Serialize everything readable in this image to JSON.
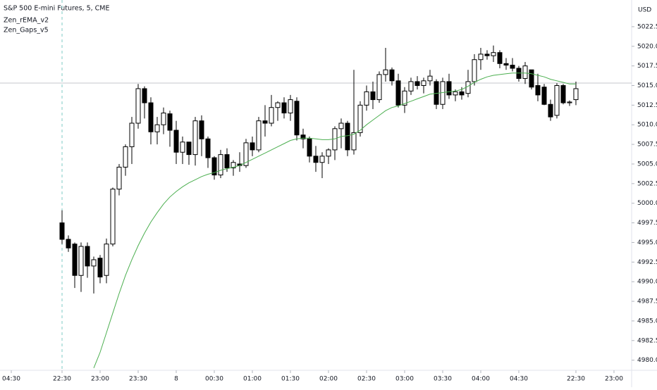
{
  "chart_data": {
    "type": "candlestick",
    "title": "S&P 500 E-mini Futures, 5, CME",
    "indicators": [
      "Zen_rEMA_v2",
      "Zen_Gaps_v5"
    ],
    "currency": "USD",
    "x": [
      0,
      1,
      2,
      3,
      4,
      5,
      6,
      7,
      8,
      9,
      10,
      11,
      12,
      13,
      14,
      15,
      16,
      17,
      18,
      19,
      20,
      21,
      22,
      23,
      24,
      25,
      26,
      27,
      28,
      29,
      30,
      31,
      32,
      33,
      34,
      35,
      36,
      37,
      38,
      39,
      40,
      41,
      42,
      43,
      44,
      45,
      46,
      47,
      48,
      49,
      50,
      51,
      52,
      53,
      54,
      55,
      56,
      57,
      58,
      59,
      60,
      61,
      62,
      63,
      64,
      65,
      66,
      67,
      68,
      69,
      70,
      71,
      72,
      73,
      74,
      75,
      76,
      77,
      78,
      79,
      80,
      81
    ],
    "open": [
      4997.5,
      4995.4,
      4994.8,
      4990.8,
      4994.5,
      4992.0,
      4993.0,
      4990.8,
      4994.8,
      5001.8,
      5004.6,
      5007.2,
      5010.2,
      5014.6,
      5012.8,
      5009.1,
      5010.0,
      5011.4,
      5009.3,
      5006.5,
      5007.8,
      5006.2,
      5010.5,
      5008.2,
      5005.8,
      5003.6,
      5006.2,
      5004.5,
      5005.0,
      5004.8,
      5007.7,
      5006.8,
      5010.5,
      5010.2,
      5012.2,
      5012.8,
      5011.5,
      5013.0,
      5008.7,
      5008.2,
      5006.0,
      5005.2,
      5006.0,
      5006.8,
      5009.5,
      5010.2,
      5006.8,
      5009.0,
      5012.5,
      5014.2,
      5013.2,
      5016.4,
      5017.0,
      5015.6,
      5012.5,
      5014.3,
      5015.5,
      5015.0,
      5015.6,
      5015.5,
      5012.6,
      5015.5,
      5013.8,
      5014.2,
      5014.0,
      5015.5,
      5018.3,
      5019.0,
      5018.8,
      5019.2,
      5017.8,
      5017.6,
      5017.2,
      5015.9,
      5017.0,
      5015.0,
      5014.8,
      5012.6,
      5011.2,
      5015.0,
      5012.8,
      5013.2
    ],
    "high": [
      4999.1,
      4995.9,
      4995.0,
      4995.0,
      4995.0,
      4993.2,
      4993.4,
      4995.5,
      5002.0,
      5005.0,
      5007.5,
      5011.0,
      5015.2,
      5014.9,
      5013.5,
      5011.0,
      5012.2,
      5011.8,
      5010.5,
      5008.5,
      5007.8,
      5011.0,
      5011.2,
      5008.5,
      5006.0,
      5006.8,
      5007.0,
      5005.5,
      5006.5,
      5008.2,
      5008.5,
      5011.0,
      5012.5,
      5013.8,
      5013.0,
      5013.5,
      5013.8,
      5013.5,
      5009.5,
      5008.5,
      5007.3,
      5006.5,
      5007.0,
      5009.8,
      5010.8,
      5010.5,
      5017.0,
      5013.0,
      5015.0,
      5015.5,
      5016.8,
      5019.8,
      5017.3,
      5016.5,
      5014.8,
      5016.0,
      5016.2,
      5016.0,
      5017.0,
      5015.8,
      5016.0,
      5016.5,
      5014.5,
      5014.8,
      5017.0,
      5019.0,
      5019.8,
      5019.5,
      5020.1,
      5019.5,
      5018.5,
      5018.5,
      5017.5,
      5018.0,
      5017.0,
      5016.5,
      5015.2,
      5013.2,
      5015.3,
      5015.2,
      5013.1,
      5015.5
    ],
    "low": [
      4994.8,
      4993.8,
      4989.2,
      4988.7,
      4990.5,
      4988.5,
      4989.8,
      4989.8,
      4994.5,
      5001.0,
      5003.5,
      5005.0,
      5009.5,
      5010.8,
      5007.5,
      5007.5,
      5008.8,
      5007.2,
      5005.0,
      5005.0,
      5004.9,
      5004.8,
      5006.0,
      5004.5,
      5003.0,
      5003.2,
      5004.0,
      5003.5,
      5004.0,
      5004.5,
      5006.0,
      5006.5,
      5008.5,
      5009.8,
      5010.5,
      5010.8,
      5010.5,
      5008.0,
      5007.0,
      5005.2,
      5004.0,
      5003.2,
      5005.0,
      5005.5,
      5007.0,
      5006.0,
      5006.2,
      5008.5,
      5011.8,
      5012.0,
      5012.8,
      5015.5,
      5015.0,
      5012.2,
      5011.5,
      5013.8,
      5014.5,
      5014.0,
      5015.0,
      5012.0,
      5012.0,
      5013.3,
      5013.0,
      5013.2,
      5013.5,
      5015.0,
      5017.0,
      5018.3,
      5018.0,
      5017.2,
      5017.0,
      5016.8,
      5015.5,
      5015.2,
      5014.5,
      5013.0,
      5012.5,
      5010.5,
      5010.8,
      5012.6,
      5012.4,
      5012.5
    ],
    "close": [
      4995.4,
      4994.3,
      4990.8,
      4994.5,
      4992.0,
      4992.8,
      4990.6,
      4994.8,
      5001.8,
      5004.6,
      5007.2,
      5010.2,
      5014.6,
      5012.8,
      5009.1,
      5010.0,
      5011.5,
      5009.3,
      5006.5,
      5007.8,
      5006.2,
      5010.5,
      5008.2,
      5005.8,
      5003.6,
      5006.2,
      5004.5,
      5005.2,
      5004.8,
      5007.7,
      5006.8,
      5010.5,
      5010.2,
      5012.2,
      5012.8,
      5011.5,
      5013.2,
      5008.7,
      5008.2,
      5006.0,
      5005.2,
      5006.0,
      5006.8,
      5009.5,
      5010.2,
      5006.8,
      5009.0,
      5012.5,
      5014.2,
      5013.2,
      5016.4,
      5017.0,
      5015.6,
      5012.5,
      5014.3,
      5015.5,
      5015.0,
      5015.6,
      5016.2,
      5012.6,
      5015.5,
      5013.8,
      5014.2,
      5013.8,
      5015.5,
      5018.3,
      5019.0,
      5018.8,
      5019.2,
      5017.8,
      5017.6,
      5017.2,
      5015.9,
      5017.5,
      5014.8,
      5013.8,
      5012.6,
      5011.0,
      5015.0,
      5012.8,
      5012.9,
      5014.6
    ],
    "ema": {
      "color": "#4caf50",
      "values": [
        null,
        null,
        null,
        null,
        null,
        4979.0,
        4981.0,
        4983.5,
        4986.0,
        4988.5,
        4990.8,
        4992.8,
        4994.6,
        4996.2,
        4997.6,
        4998.8,
        4999.9,
        5000.8,
        5001.5,
        5002.1,
        5002.6,
        5003.0,
        5003.4,
        5003.7,
        5003.9,
        5004.2,
        5004.4,
        5004.6,
        5004.8,
        5005.2,
        5005.6,
        5006.0,
        5006.4,
        5006.8,
        5007.2,
        5007.6,
        5008.0,
        5008.2,
        5008.3,
        5008.3,
        5008.2,
        5008.1,
        5008.1,
        5008.2,
        5008.5,
        5008.6,
        5008.8,
        5009.3,
        5010.0,
        5010.6,
        5011.2,
        5011.8,
        5012.2,
        5012.4,
        5012.7,
        5013.0,
        5013.3,
        5013.6,
        5013.9,
        5014.0,
        5014.1,
        5014.2,
        5014.3,
        5014.5,
        5014.9,
        5015.4,
        5015.8,
        5016.1,
        5016.3,
        5016.4,
        5016.5,
        5016.6,
        5016.6,
        5016.6,
        5016.5,
        5016.3,
        5016.1,
        5015.8,
        5015.6,
        5015.4,
        5015.2,
        5015.2
      ]
    },
    "up_color": "#ffffff",
    "down_color": "#000000",
    "xlim": [
      -9.78,
      89.67
    ],
    "ylim": [
      4978.8,
      5025.9
    ],
    "xticks": [
      {
        "value": -8,
        "label": "04:30"
      },
      {
        "value": 0,
        "label": "22:30"
      },
      {
        "value": 6,
        "label": "23:00"
      },
      {
        "value": 12,
        "label": "23:30"
      },
      {
        "value": 18,
        "label": "8"
      },
      {
        "value": 24,
        "label": "00:30"
      },
      {
        "value": 30,
        "label": "01:00"
      },
      {
        "value": 36,
        "label": "01:30"
      },
      {
        "value": 42,
        "label": "02:00"
      },
      {
        "value": 48,
        "label": "02:30"
      },
      {
        "value": 54,
        "label": "03:00"
      },
      {
        "value": 60,
        "label": "03:30"
      },
      {
        "value": 66,
        "label": "04:00"
      },
      {
        "value": 72,
        "label": "04:30"
      },
      {
        "value": 81,
        "label": "22:30"
      },
      {
        "value": 87,
        "label": "23:00"
      }
    ],
    "yticks": [
      {
        "value": 4980,
        "label": "4980.00"
      },
      {
        "value": 4982.5,
        "label": "4982.50"
      },
      {
        "value": 4985,
        "label": "4985.00"
      },
      {
        "value": 4987.5,
        "label": "4987.50"
      },
      {
        "value": 4990,
        "label": "4990.00"
      },
      {
        "value": 4992.5,
        "label": "4992.50"
      },
      {
        "value": 4995,
        "label": "4995.00"
      },
      {
        "value": 4997.5,
        "label": "4997.50"
      },
      {
        "value": 5000,
        "label": "5000.00"
      },
      {
        "value": 5002.5,
        "label": "5002.50"
      },
      {
        "value": 5005,
        "label": "5005.00"
      },
      {
        "value": 5007.5,
        "label": "5007.50"
      },
      {
        "value": 5010,
        "label": "5010.00"
      },
      {
        "value": 5012.5,
        "label": "5012.50"
      },
      {
        "value": 5015,
        "label": "5015.00"
      },
      {
        "value": 5017.5,
        "label": "5017.50"
      },
      {
        "value": 5020,
        "label": "5020.00"
      },
      {
        "value": 5022.5,
        "label": "5022.50"
      }
    ]
  }
}
